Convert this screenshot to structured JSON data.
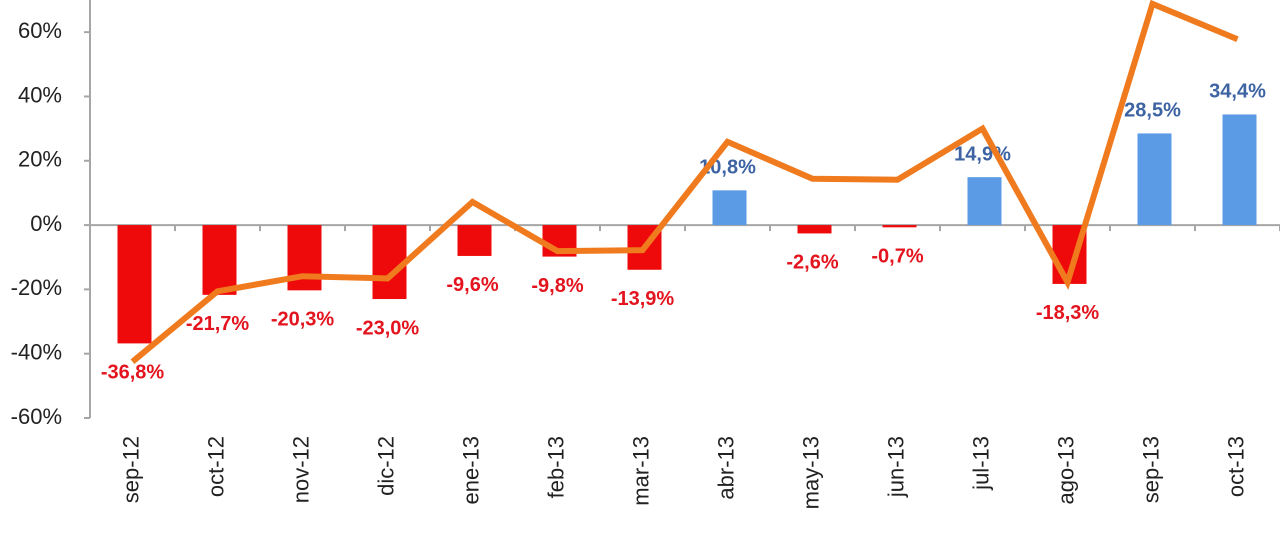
{
  "chart_data": {
    "type": "bar_line",
    "categories": [
      "sep-12",
      "oct-12",
      "nov-12",
      "dic-12",
      "ene-13",
      "feb-13",
      "mar-13",
      "abr-13",
      "may-13",
      "jun-13",
      "jul-13",
      "ago-13",
      "sep-13",
      "oct-13"
    ],
    "series": [
      {
        "type": "bar",
        "values": [
          -36.8,
          -21.7,
          -20.3,
          -23.0,
          -9.6,
          -9.8,
          -13.9,
          10.8,
          -2.6,
          -0.7,
          14.9,
          -18.3,
          28.5,
          34.4
        ],
        "value_labels": [
          "-36,8%",
          "-21,7%",
          "-20,3%",
          "-23,0%",
          "-9,6%",
          "-9,8%",
          "-13,9%",
          "10,8%",
          "-2,6%",
          "-0,7%",
          "14,9%",
          "-18,3%",
          "28,5%",
          "34,4%"
        ],
        "colors": {
          "negative": "#ee0a0a",
          "positive": "#5b9be6"
        },
        "label_colors": {
          "negative": "#e3141e",
          "positive": "#3d63a3"
        }
      },
      {
        "type": "line",
        "color": "#f07a1e",
        "values": [
          -42.5,
          -20.6,
          -15.9,
          -16.6,
          7.2,
          -8.1,
          -7.8,
          25.9,
          14.4,
          14.1,
          30.0,
          -17.8,
          68.8,
          57.8
        ]
      }
    ],
    "ylim": [
      -60,
      70
    ],
    "yticks": [
      {
        "value": -60,
        "label": "-60%"
      },
      {
        "value": -40,
        "label": "-40%"
      },
      {
        "value": -20,
        "label": "-20%"
      },
      {
        "value": 0,
        "label": "0%"
      },
      {
        "value": 20,
        "label": "20%"
      },
      {
        "value": 40,
        "label": "40%"
      },
      {
        "value": 60,
        "label": "60%"
      }
    ]
  }
}
